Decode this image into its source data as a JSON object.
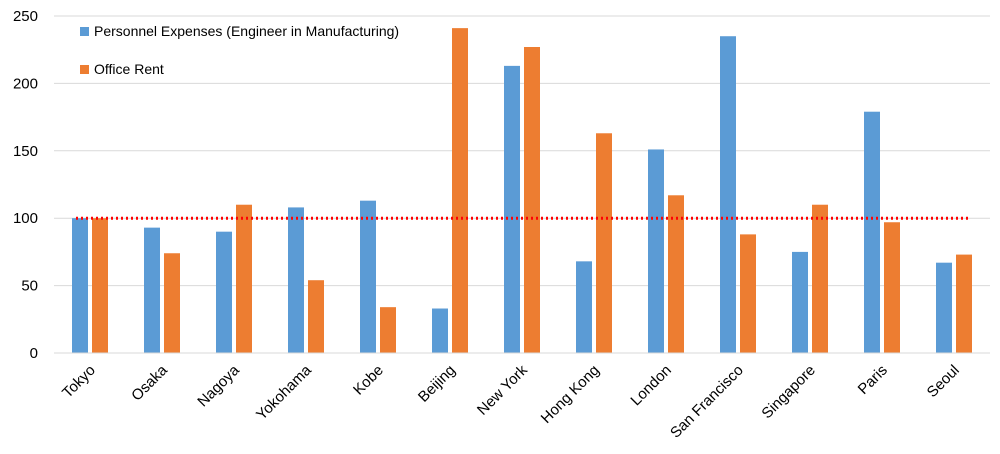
{
  "chart_data": {
    "type": "bar",
    "categories": [
      "Tokyo",
      "Osaka",
      "Nagoya",
      "Yokohama",
      "Kobe",
      "Beijing",
      "New York",
      "Hong Kong",
      "London",
      "San Francisco",
      "Singapore",
      "Paris",
      "Seoul"
    ],
    "series": [
      {
        "name": "Personnel Expenses (Engineer in Manufacturing)",
        "color": "#5b9bd5",
        "values": [
          100,
          93,
          90,
          108,
          113,
          33,
          213,
          68,
          151,
          235,
          75,
          179,
          67
        ]
      },
      {
        "name": "Office Rent",
        "color": "#ed7d31",
        "values": [
          100,
          74,
          110,
          54,
          34,
          241,
          227,
          163,
          117,
          88,
          110,
          97,
          73
        ]
      }
    ],
    "reference_line": {
      "value": 100,
      "color": "#ff0000",
      "style": "dotted"
    },
    "ylim": [
      0,
      250
    ],
    "yticks": [
      0,
      50,
      100,
      150,
      200,
      250
    ],
    "grid": true,
    "legend_position": "top-left",
    "title": "",
    "xlabel": "",
    "ylabel": ""
  }
}
